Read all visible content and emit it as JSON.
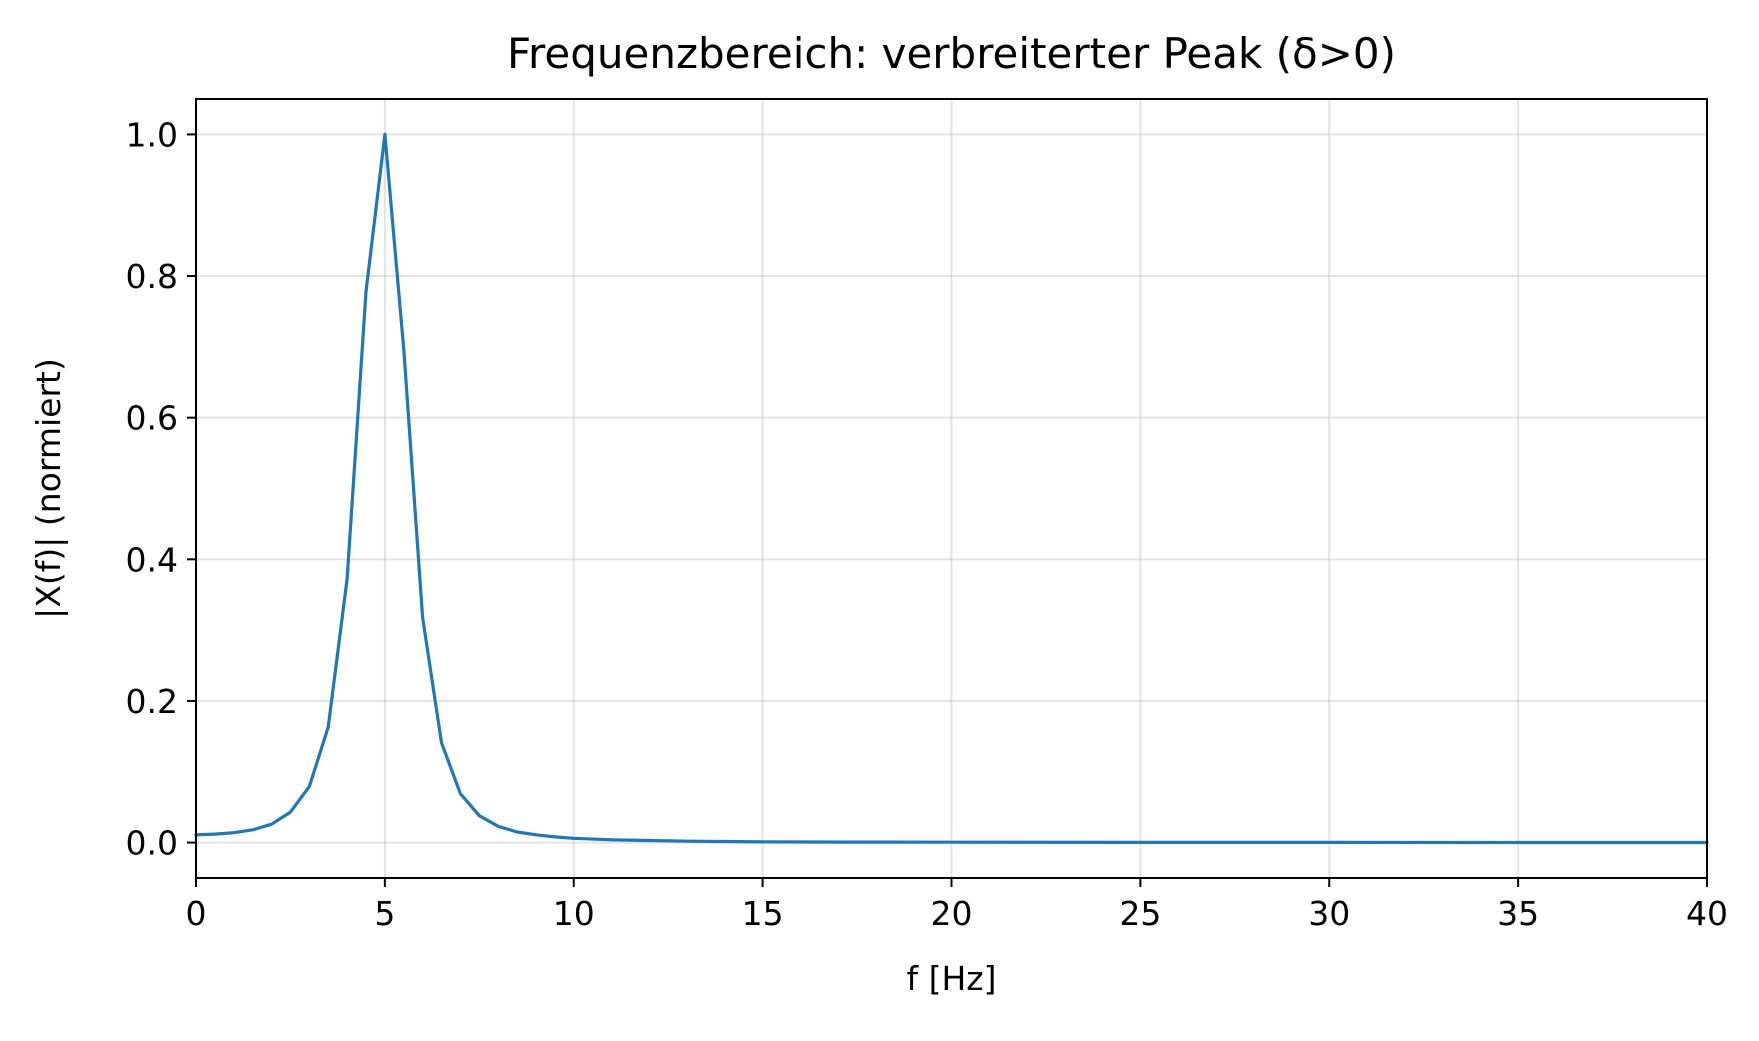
{
  "chart_data": {
    "type": "line",
    "title": "Frequenzbereich: verbreiterter Peak (δ>0)",
    "xlabel": "f [Hz]",
    "ylabel": "|X(f)| (normiert)",
    "xlim": [
      0,
      40
    ],
    "ylim": [
      -0.05,
      1.05
    ],
    "xticks": [
      0,
      5,
      10,
      15,
      20,
      25,
      30,
      35,
      40
    ],
    "xtick_labels": [
      "0",
      "5",
      "10",
      "15",
      "20",
      "25",
      "30",
      "35",
      "40"
    ],
    "yticks": [
      0.0,
      0.2,
      0.4,
      0.6,
      0.8,
      1.0
    ],
    "ytick_labels": [
      "0.0",
      "0.2",
      "0.4",
      "0.6",
      "0.8",
      "1.0"
    ],
    "grid": true,
    "series": [
      {
        "color": "#1f77b4",
        "x": [
          0,
          0.5,
          1,
          1.5,
          2,
          2.5,
          3,
          3.5,
          4,
          4.5,
          5,
          5.5,
          6,
          6.5,
          7,
          7.5,
          8,
          8.5,
          9,
          9.5,
          10,
          11,
          12,
          13,
          14,
          15,
          17.5,
          20,
          25,
          30,
          35,
          40
        ],
        "y": [
          0.011,
          0.012,
          0.014,
          0.018,
          0.026,
          0.043,
          0.079,
          0.163,
          0.372,
          0.778,
          1.0,
          0.696,
          0.318,
          0.141,
          0.069,
          0.038,
          0.023,
          0.015,
          0.011,
          0.008,
          0.006,
          0.004,
          0.003,
          0.002,
          0.0015,
          0.001,
          0.0007,
          0.0005,
          0.0003,
          0.0002,
          0.0001,
          0.0001
        ]
      }
    ]
  }
}
